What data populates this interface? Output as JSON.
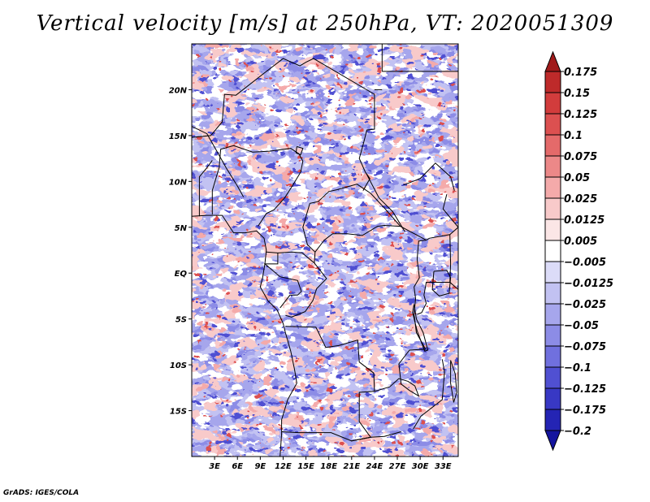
{
  "chart_data": {
    "type": "heatmap",
    "title": "Vertical velocity [m/s] at 250hPa, VT: 2020051309",
    "variable": "Vertical velocity",
    "units": "m/s",
    "level": "250hPa",
    "valid_time": "2020051309",
    "lon_range": [
      0,
      35
    ],
    "lat_range": [
      -20,
      25
    ],
    "x_ticks": [
      {
        "value": 3,
        "label": "3E"
      },
      {
        "value": 6,
        "label": "6E"
      },
      {
        "value": 9,
        "label": "9E"
      },
      {
        "value": 12,
        "label": "12E"
      },
      {
        "value": 15,
        "label": "15E"
      },
      {
        "value": 18,
        "label": "18E"
      },
      {
        "value": 21,
        "label": "21E"
      },
      {
        "value": 24,
        "label": "24E"
      },
      {
        "value": 27,
        "label": "27E"
      },
      {
        "value": 30,
        "label": "30E"
      },
      {
        "value": 33,
        "label": "33E"
      }
    ],
    "y_ticks": [
      {
        "value": 20,
        "label": "20N"
      },
      {
        "value": 15,
        "label": "15N"
      },
      {
        "value": 10,
        "label": "10N"
      },
      {
        "value": 5,
        "label": "5N"
      },
      {
        "value": 0,
        "label": "EQ"
      },
      {
        "value": -5,
        "label": "5S"
      },
      {
        "value": -10,
        "label": "10S"
      },
      {
        "value": -15,
        "label": "15S"
      }
    ],
    "colorbar": {
      "levels": [
        0.175,
        0.15,
        0.125,
        0.1,
        0.075,
        0.05,
        0.025,
        0.0125,
        0.005,
        -0.005,
        -0.0125,
        -0.025,
        -0.05,
        -0.075,
        -0.1,
        -0.125,
        -0.175,
        -0.2
      ],
      "labels": [
        "0.175",
        "0.15",
        "0.125",
        "0.1",
        "0.075",
        "0.05",
        "0.025",
        "0.0125",
        "0.005",
        "−0.005",
        "−0.0125",
        "−0.025",
        "−0.05",
        "−0.075",
        "−0.1",
        "−0.125",
        "−0.175",
        "−0.2"
      ],
      "colors": [
        "#a01a1a",
        "#be2a2a",
        "#d23c3c",
        "#dc5050",
        "#e46a6a",
        "#ec8888",
        "#f4aaaa",
        "#f8caca",
        "#fbe6e6",
        "#ffffff",
        "#dcdcf8",
        "#c2c2f2",
        "#a6a6ec",
        "#8c8ce6",
        "#7070de",
        "#5050d2",
        "#3838c4",
        "#2424b4",
        "#14149e"
      ],
      "extend": "both"
    }
  },
  "credit": "GrADS: IGES/COLA"
}
